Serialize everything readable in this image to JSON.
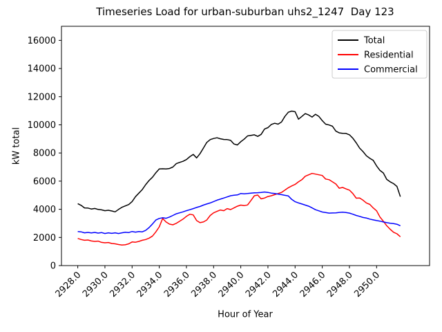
{
  "figure": {
    "title": "Timeseries Load for urban-suburban uhs2_1247  Day 123",
    "xlabel": "Hour of Year",
    "ylabel": "kW total"
  },
  "chart_data": {
    "type": "line",
    "title": "Timeseries Load for urban-suburban uhs2_1247  Day 123",
    "xlabel": "Hour of Year",
    "ylabel": "kW total",
    "grid": false,
    "legend_position": "upper right",
    "xlim": [
      2926.8,
      2953.9
    ],
    "ylim": [
      0,
      17000
    ],
    "xticks": [
      2928,
      2930,
      2932,
      2934,
      2936,
      2938,
      2940,
      2942,
      2944,
      2946,
      2948,
      2950
    ],
    "xtick_labels": [
      "2928.0",
      "2930.0",
      "2932.0",
      "2934.0",
      "2936.0",
      "2938.0",
      "2940.0",
      "2942.0",
      "2944.0",
      "2946.0",
      "2948.0",
      "2950.0"
    ],
    "yticks": [
      0,
      2000,
      4000,
      6000,
      8000,
      10000,
      12000,
      14000,
      16000
    ],
    "ytick_labels": [
      "0",
      "2000",
      "4000",
      "6000",
      "8000",
      "10000",
      "12000",
      "14000",
      "16000"
    ],
    "x_start": 2928.0,
    "x_step": 0.25,
    "n_points": 96,
    "series": [
      {
        "name": "Total",
        "color": "#000000",
        "values": [
          4400,
          4280,
          4100,
          4090,
          4020,
          4060,
          3990,
          3960,
          3900,
          3930,
          3880,
          3820,
          3990,
          4140,
          4240,
          4340,
          4550,
          4900,
          5150,
          5400,
          5750,
          6050,
          6280,
          6600,
          6870,
          6880,
          6870,
          6900,
          7000,
          7240,
          7330,
          7410,
          7530,
          7740,
          7900,
          7650,
          7950,
          8350,
          8750,
          8950,
          9030,
          9080,
          9010,
          8960,
          8950,
          8900,
          8640,
          8570,
          8800,
          8980,
          9210,
          9250,
          9290,
          9180,
          9320,
          9700,
          9800,
          10030,
          10110,
          10050,
          10200,
          10600,
          10900,
          10975,
          10930,
          10400,
          10600,
          10800,
          10700,
          10550,
          10750,
          10600,
          10300,
          10050,
          9990,
          9900,
          9550,
          9430,
          9400,
          9390,
          9290,
          9050,
          8720,
          8350,
          8100,
          7800,
          7620,
          7480,
          7080,
          6760,
          6580,
          6120,
          5950,
          5820,
          5620,
          4900
        ]
      },
      {
        "name": "Residential",
        "color": "#ff0000",
        "values": [
          1930,
          1850,
          1800,
          1820,
          1750,
          1720,
          1740,
          1650,
          1620,
          1640,
          1570,
          1550,
          1500,
          1460,
          1480,
          1550,
          1680,
          1660,
          1720,
          1800,
          1850,
          1950,
          2100,
          2400,
          2750,
          3350,
          3100,
          2950,
          2900,
          3000,
          3150,
          3300,
          3500,
          3650,
          3600,
          3200,
          3050,
          3100,
          3240,
          3560,
          3750,
          3850,
          3950,
          3900,
          4050,
          3980,
          4100,
          4220,
          4300,
          4260,
          4310,
          4630,
          4960,
          5010,
          4740,
          4800,
          4910,
          4960,
          5040,
          5120,
          5200,
          5360,
          5530,
          5660,
          5770,
          5950,
          6100,
          6350,
          6450,
          6550,
          6500,
          6450,
          6400,
          6150,
          6100,
          5950,
          5800,
          5500,
          5550,
          5450,
          5360,
          5120,
          4790,
          4800,
          4650,
          4450,
          4350,
          4100,
          3890,
          3450,
          3150,
          2830,
          2580,
          2370,
          2260,
          2050
        ]
      },
      {
        "name": "Commercial",
        "color": "#0000ff",
        "values": [
          2420,
          2400,
          2330,
          2360,
          2320,
          2360,
          2310,
          2350,
          2280,
          2330,
          2290,
          2330,
          2280,
          2330,
          2370,
          2350,
          2420,
          2380,
          2420,
          2400,
          2500,
          2700,
          2960,
          3240,
          3350,
          3400,
          3360,
          3450,
          3560,
          3680,
          3750,
          3820,
          3900,
          3970,
          4050,
          4130,
          4200,
          4300,
          4380,
          4450,
          4550,
          4650,
          4720,
          4800,
          4880,
          4960,
          5000,
          5020,
          5120,
          5100,
          5120,
          5150,
          5170,
          5180,
          5200,
          5230,
          5200,
          5150,
          5120,
          5080,
          5040,
          4990,
          4950,
          4700,
          4540,
          4450,
          4380,
          4300,
          4220,
          4100,
          3970,
          3890,
          3810,
          3770,
          3730,
          3740,
          3750,
          3780,
          3800,
          3770,
          3730,
          3650,
          3560,
          3500,
          3420,
          3380,
          3300,
          3250,
          3200,
          3160,
          3100,
          3050,
          3010,
          2980,
          2940,
          2830
        ]
      }
    ]
  }
}
